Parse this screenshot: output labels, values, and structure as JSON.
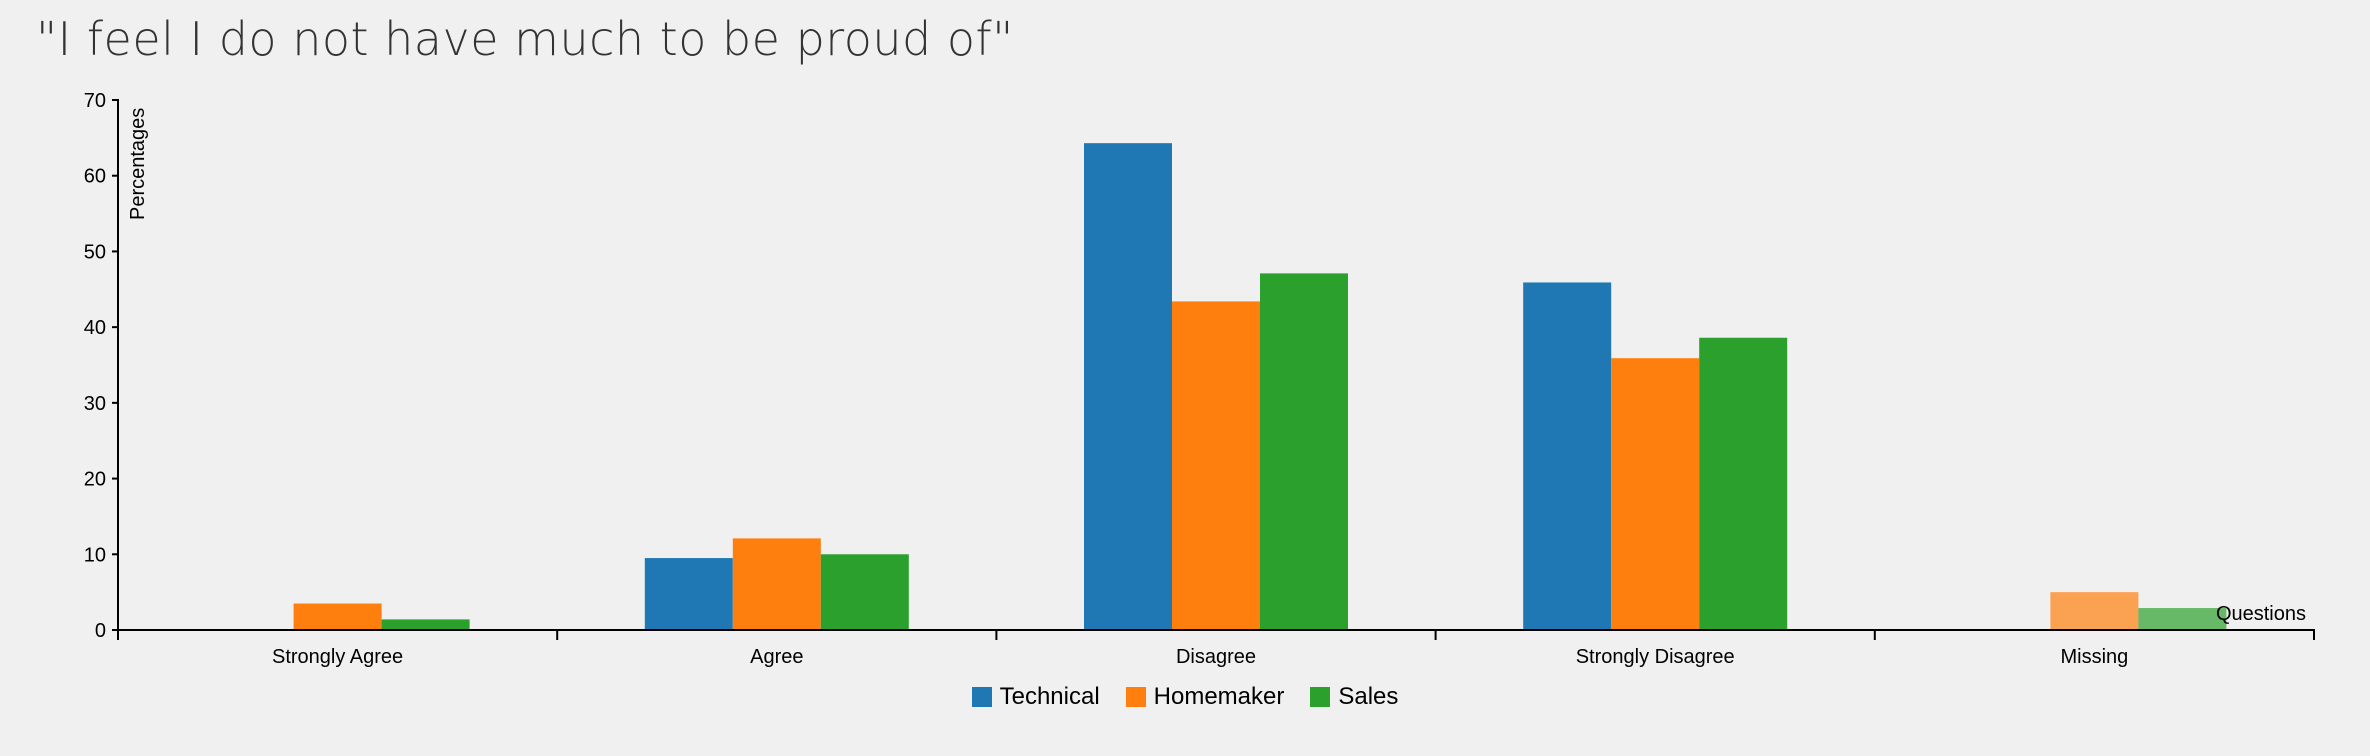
{
  "chart_data": {
    "type": "bar",
    "title": "\"I feel I do not have much to be proud of\"",
    "xlabel": "Questions",
    "ylabel": "Percentages",
    "ylim": [
      0,
      70
    ],
    "yticks": [
      0,
      10,
      20,
      30,
      40,
      50,
      60,
      70
    ],
    "categories": [
      "Strongly Agree",
      "Agree",
      "Disagree",
      "Strongly Disagree",
      "Missing"
    ],
    "series": [
      {
        "name": "Technical",
        "color": "#1f77b4",
        "values": [
          0,
          9.5,
          64.3,
          45.9,
          0
        ]
      },
      {
        "name": "Homemaker",
        "color": "#ff7f0e",
        "values": [
          3.5,
          12.1,
          43.4,
          35.9,
          5.0
        ]
      },
      {
        "name": "Sales",
        "color": "#2ca02c",
        "values": [
          1.4,
          10.0,
          47.1,
          38.6,
          2.9
        ]
      }
    ],
    "legend_position": "bottom-center",
    "grid": false
  }
}
